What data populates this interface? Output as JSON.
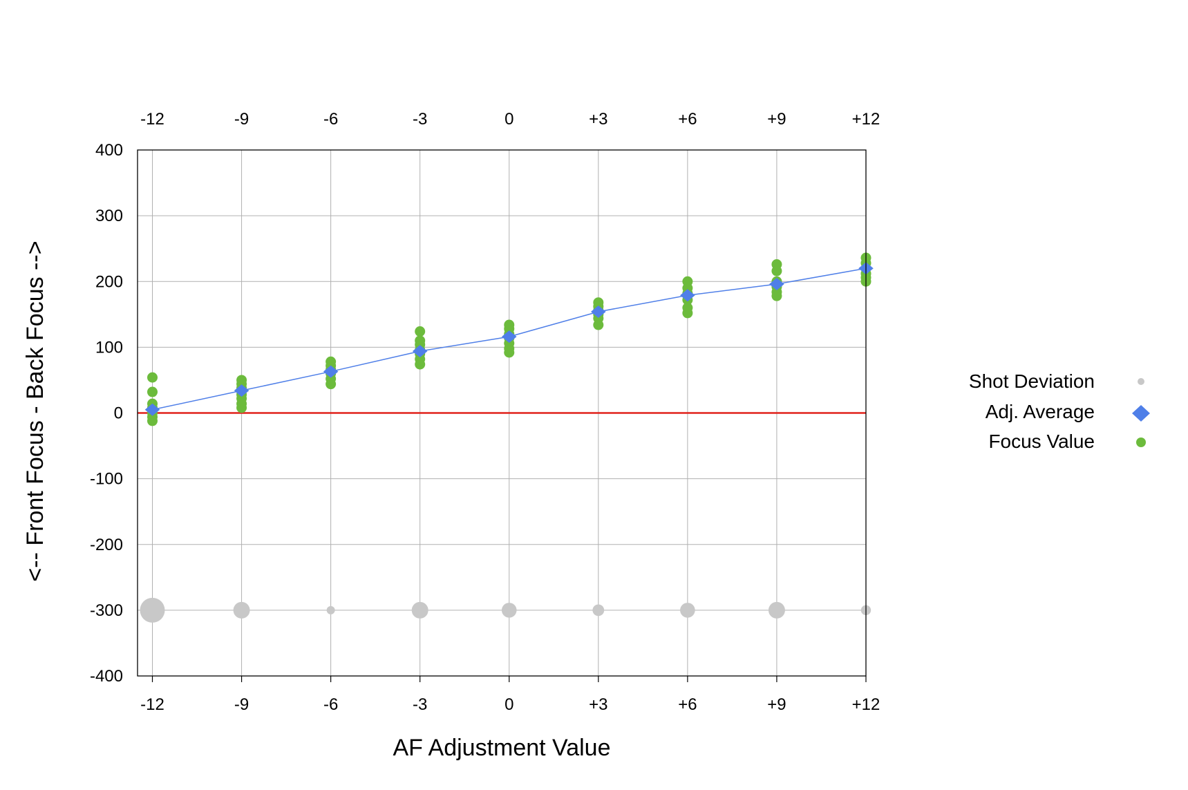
{
  "chart_data": {
    "type": "scatter",
    "xlabel": "AF Adjustment Value",
    "ylabel": "<-- Front Focus - Back Focus -->",
    "categories": [
      "-12",
      "-9",
      "-6",
      "-3",
      "0",
      "+3",
      "+6",
      "+9",
      "+12"
    ],
    "x": [
      -12,
      -9,
      -6,
      -3,
      0,
      3,
      6,
      9,
      12
    ],
    "xlim": [
      -12.5,
      12
    ],
    "ylim": [
      -400,
      400
    ],
    "yticks": [
      "400",
      "300",
      "200",
      "100",
      "0",
      "-100",
      "-200",
      "-300",
      "-400"
    ],
    "ytick_values": [
      400,
      300,
      200,
      100,
      0,
      -100,
      -200,
      -300,
      -400
    ],
    "grid": true,
    "top_axis_labels": true,
    "legend_position": "right",
    "reference_line": {
      "y": 0,
      "color": "#e0201a"
    },
    "series": [
      {
        "name": "Shot Deviation",
        "kind": "bubble",
        "color": "#c8c8c8",
        "y": -300,
        "relative_size": [
          3,
          2,
          1,
          2,
          1.8,
          1.4,
          1.8,
          2,
          1.2
        ]
      },
      {
        "name": "Adj. Average",
        "kind": "line-diamond",
        "color": "#4f7fe8",
        "values": [
          5,
          34,
          63,
          94,
          116,
          154,
          179,
          196,
          220
        ]
      },
      {
        "name": "Focus Value",
        "kind": "points",
        "color": "#6cbb3c",
        "points": [
          [
            -12,
            54
          ],
          [
            -12,
            32
          ],
          [
            -12,
            14
          ],
          [
            -12,
            8
          ],
          [
            -12,
            0
          ],
          [
            -12,
            -6
          ],
          [
            -12,
            -12
          ],
          [
            -9,
            50
          ],
          [
            -9,
            44
          ],
          [
            -9,
            38
          ],
          [
            -9,
            28
          ],
          [
            -9,
            22
          ],
          [
            -9,
            14
          ],
          [
            -9,
            8
          ],
          [
            -6,
            78
          ],
          [
            -6,
            72
          ],
          [
            -6,
            66
          ],
          [
            -6,
            60
          ],
          [
            -6,
            52
          ],
          [
            -6,
            44
          ],
          [
            -3,
            124
          ],
          [
            -3,
            110
          ],
          [
            -3,
            104
          ],
          [
            -3,
            96
          ],
          [
            -3,
            90
          ],
          [
            -3,
            82
          ],
          [
            -3,
            74
          ],
          [
            0,
            134
          ],
          [
            0,
            128
          ],
          [
            0,
            120
          ],
          [
            0,
            114
          ],
          [
            0,
            106
          ],
          [
            0,
            98
          ],
          [
            0,
            92
          ],
          [
            3,
            168
          ],
          [
            3,
            162
          ],
          [
            3,
            156
          ],
          [
            3,
            150
          ],
          [
            3,
            144
          ],
          [
            3,
            134
          ],
          [
            6,
            200
          ],
          [
            6,
            190
          ],
          [
            6,
            182
          ],
          [
            6,
            172
          ],
          [
            6,
            160
          ],
          [
            6,
            152
          ],
          [
            9,
            226
          ],
          [
            9,
            216
          ],
          [
            9,
            200
          ],
          [
            9,
            192
          ],
          [
            9,
            184
          ],
          [
            9,
            178
          ],
          [
            12,
            236
          ],
          [
            12,
            228
          ],
          [
            12,
            220
          ],
          [
            12,
            212
          ],
          [
            12,
            206
          ],
          [
            12,
            200
          ]
        ]
      }
    ]
  }
}
